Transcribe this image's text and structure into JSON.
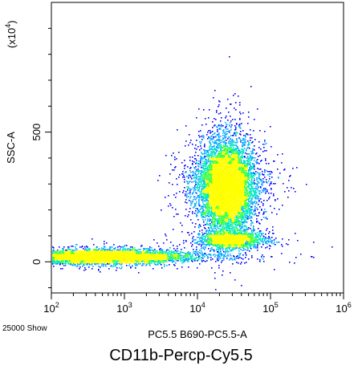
{
  "chart_data": {
    "type": "scatter",
    "style": "density-dot-plot",
    "title": "",
    "caption": "CD11b-Percp-Cy5.5",
    "event_count_label": "25000 Show",
    "xlabel": "PC5.5 B690-PC5.5-A",
    "ylabel": "SSC-A",
    "y_multiplier_label": "(x10",
    "y_multiplier_exp": "4",
    "y_multiplier_close": ")",
    "x_scale": "log",
    "y_scale": "linear",
    "xlim": [
      100,
      1000000
    ],
    "ylim": [
      -120,
      1000
    ],
    "x_ticks": [
      {
        "value": 100,
        "base": "10",
        "exp": "2"
      },
      {
        "value": 1000,
        "base": "10",
        "exp": "3"
      },
      {
        "value": 10000,
        "base": "10",
        "exp": "4"
      },
      {
        "value": 100000,
        "base": "10",
        "exp": "5"
      },
      {
        "value": 1000000,
        "base": "10",
        "exp": "6"
      }
    ],
    "y_ticks": [
      {
        "value": 0,
        "label": "0"
      },
      {
        "value": 500,
        "label": "500"
      }
    ],
    "grid": false,
    "density_colors": [
      "#0000ff",
      "#00a8ff",
      "#00e8c0",
      "#40ff40",
      "#ffff00"
    ],
    "populations": [
      {
        "name": "",
        "x_center": 500,
        "y_center": 20,
        "x_spread_decades": 0.55,
        "y_spread": 12,
        "events": 6000
      },
      {
        "name": "",
        "x_center": 25000,
        "y_center": 290,
        "x_spread_decades": 0.18,
        "y_spread": 80,
        "events": 9000
      },
      {
        "name": "",
        "x_center": 30000,
        "y_center": 85,
        "x_spread_decades": 0.2,
        "y_spread": 15,
        "events": 1800
      }
    ]
  }
}
